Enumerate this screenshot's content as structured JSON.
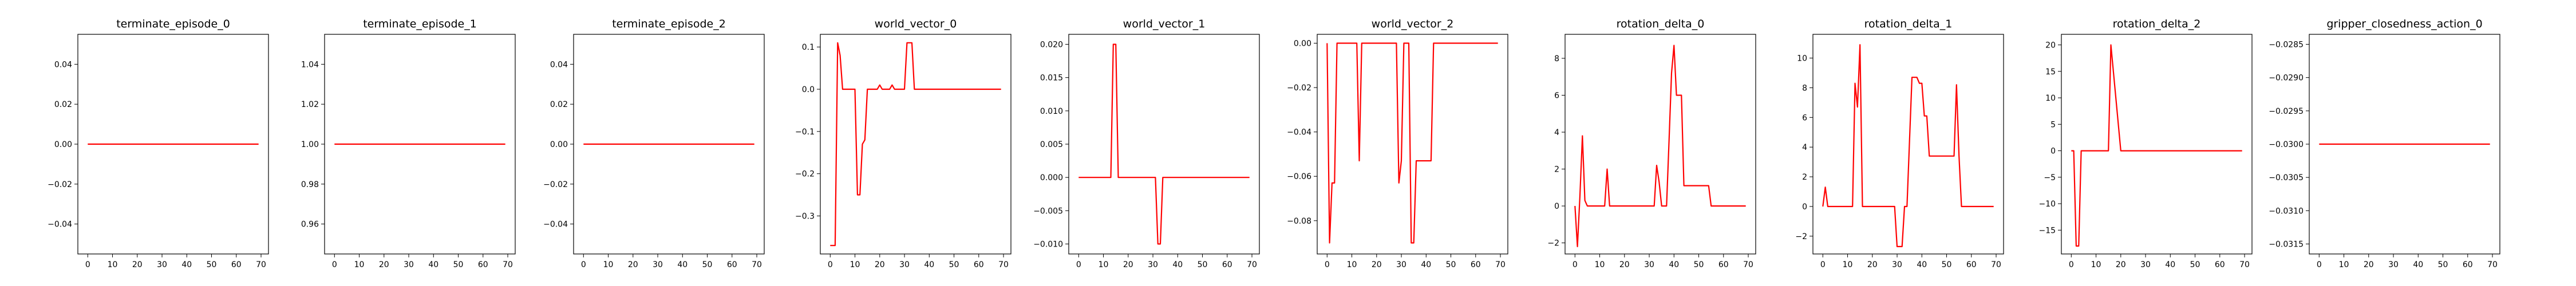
{
  "chart_data": [
    {
      "type": "line",
      "title": "terminate_episode_0",
      "color": "#ff0000",
      "xlim": [
        -4,
        73
      ],
      "ylim": [
        -0.055,
        0.055
      ],
      "xticks": [
        "0",
        "10",
        "20",
        "30",
        "40",
        "50",
        "60",
        "70"
      ],
      "yticks": [
        "−0.04",
        "−0.02",
        "0.00",
        "0.02",
        "0.04"
      ],
      "x": [
        0,
        69
      ],
      "y": [
        0.0,
        0.0
      ]
    },
    {
      "type": "line",
      "title": "terminate_episode_1",
      "color": "#ff0000",
      "xlim": [
        -4,
        73
      ],
      "ylim": [
        0.945,
        1.055
      ],
      "xticks": [
        "0",
        "10",
        "20",
        "30",
        "40",
        "50",
        "60",
        "70"
      ],
      "yticks": [
        "0.96",
        "0.98",
        "1.00",
        "1.02",
        "1.04"
      ],
      "x": [
        0,
        69
      ],
      "y": [
        1.0,
        1.0
      ]
    },
    {
      "type": "line",
      "title": "terminate_episode_2",
      "color": "#ff0000",
      "xlim": [
        -4,
        73
      ],
      "ylim": [
        -0.055,
        0.055
      ],
      "xticks": [
        "0",
        "10",
        "20",
        "30",
        "40",
        "50",
        "60",
        "70"
      ],
      "yticks": [
        "−0.04",
        "−0.02",
        "0.00",
        "0.02",
        "0.04"
      ],
      "x": [
        0,
        69
      ],
      "y": [
        0.0,
        0.0
      ]
    },
    {
      "type": "line",
      "title": "world_vector_0",
      "color": "#ff0000",
      "xlim": [
        -4,
        73
      ],
      "ylim": [
        -0.39,
        0.13
      ],
      "xticks": [
        "0",
        "10",
        "20",
        "30",
        "40",
        "50",
        "60",
        "70"
      ],
      "yticks": [
        "−0.3",
        "−0.2",
        "−0.1",
        "0.0",
        "0.1"
      ],
      "x": [
        0,
        1,
        2,
        3,
        4,
        5,
        6,
        7,
        8,
        9,
        10,
        11,
        12,
        13,
        14,
        15,
        16,
        17,
        18,
        19,
        20,
        21,
        22,
        23,
        24,
        25,
        26,
        27,
        28,
        29,
        30,
        31,
        32,
        33,
        34,
        35,
        36,
        40,
        50,
        60,
        69
      ],
      "y": [
        -0.37,
        -0.37,
        -0.37,
        0.11,
        0.08,
        0.0,
        0.0,
        0.0,
        0.0,
        0.0,
        0.0,
        -0.25,
        -0.25,
        -0.13,
        -0.12,
        0.0,
        0.0,
        0.0,
        0.0,
        0.0,
        0.01,
        0.0,
        0.0,
        0.0,
        0.0,
        0.01,
        0.0,
        0.0,
        0.0,
        0.0,
        0.0,
        0.11,
        0.11,
        0.11,
        0.0,
        0.0,
        0.0,
        0.0,
        0.0,
        0.0,
        0.0
      ]
    },
    {
      "type": "line",
      "title": "world_vector_1",
      "color": "#ff0000",
      "xlim": [
        -4,
        73
      ],
      "ylim": [
        -0.0115,
        0.0215
      ],
      "xticks": [
        "0",
        "10",
        "20",
        "30",
        "40",
        "50",
        "60",
        "70"
      ],
      "yticks": [
        "−0.010",
        "−0.005",
        "0.000",
        "0.005",
        "0.010",
        "0.015",
        "0.020"
      ],
      "x": [
        0,
        10,
        13,
        14,
        15,
        16,
        30,
        31,
        32,
        33,
        34,
        35,
        50,
        69
      ],
      "y": [
        0.0,
        0.0,
        0.0,
        0.02,
        0.02,
        0.0,
        0.0,
        0.0,
        -0.01,
        -0.01,
        0.0,
        0.0,
        0.0,
        0.0
      ]
    },
    {
      "type": "line",
      "title": "world_vector_2",
      "color": "#ff0000",
      "xlim": [
        -4,
        73
      ],
      "ylim": [
        -0.095,
        0.004
      ],
      "xticks": [
        "0",
        "10",
        "20",
        "30",
        "40",
        "50",
        "60",
        "70"
      ],
      "yticks": [
        "−0.08",
        "−0.06",
        "−0.04",
        "−0.02",
        "0.00"
      ],
      "x": [
        0,
        1,
        2,
        3,
        4,
        5,
        6,
        7,
        8,
        9,
        10,
        11,
        12,
        13,
        14,
        15,
        16,
        17,
        18,
        19,
        20,
        21,
        22,
        23,
        24,
        25,
        26,
        27,
        28,
        29,
        30,
        31,
        32,
        33,
        34,
        35,
        36,
        37,
        38,
        39,
        40,
        41,
        42,
        43,
        44,
        45,
        46,
        47,
        48,
        49,
        50,
        60,
        69
      ],
      "y": [
        0.0,
        -0.09,
        -0.063,
        -0.063,
        0.0,
        0.0,
        0.0,
        0.0,
        0.0,
        0.0,
        0.0,
        0.0,
        0.0,
        -0.053,
        0.0,
        0.0,
        0.0,
        0.0,
        0.0,
        0.0,
        0.0,
        0.0,
        0.0,
        0.0,
        0.0,
        0.0,
        0.0,
        0.0,
        0.0,
        -0.063,
        -0.053,
        0.0,
        0.0,
        0.0,
        -0.09,
        -0.09,
        -0.053,
        -0.053,
        -0.053,
        -0.053,
        -0.053,
        -0.053,
        -0.053,
        0.0,
        0.0,
        0.0,
        0.0,
        0.0,
        0.0,
        0.0,
        0.0,
        0.0,
        0.0
      ]
    },
    {
      "type": "line",
      "title": "rotation_delta_0",
      "color": "#ff0000",
      "xlim": [
        -4,
        73
      ],
      "ylim": [
        -2.6,
        9.3
      ],
      "xticks": [
        "0",
        "10",
        "20",
        "30",
        "40",
        "50",
        "60",
        "70"
      ],
      "yticks": [
        "−2",
        "0",
        "2",
        "4",
        "6",
        "8"
      ],
      "x": [
        0,
        1,
        2,
        3,
        4,
        5,
        6,
        7,
        8,
        9,
        10,
        11,
        12,
        13,
        14,
        15,
        16,
        17,
        18,
        19,
        20,
        21,
        22,
        23,
        24,
        25,
        26,
        27,
        28,
        29,
        30,
        31,
        32,
        33,
        34,
        35,
        36,
        37,
        38,
        39,
        40,
        41,
        42,
        43,
        44,
        45,
        46,
        47,
        48,
        49,
        50,
        51,
        52,
        53,
        54,
        55,
        56,
        60,
        65,
        69
      ],
      "y": [
        0.0,
        -2.2,
        0.5,
        3.8,
        0.3,
        0.0,
        0.0,
        0.0,
        0.0,
        0.0,
        0.0,
        0.0,
        0.0,
        2.0,
        0.0,
        0.0,
        0.0,
        0.0,
        0.0,
        0.0,
        0.0,
        0.0,
        0.0,
        0.0,
        0.0,
        0.0,
        0.0,
        0.0,
        0.0,
        0.0,
        0.0,
        0.0,
        0.0,
        2.2,
        1.3,
        0.0,
        0.0,
        0.0,
        3.5,
        7.2,
        8.7,
        6.0,
        6.0,
        6.0,
        1.1,
        1.1,
        1.1,
        1.1,
        1.1,
        1.1,
        1.1,
        1.1,
        1.1,
        1.1,
        1.1,
        0.0,
        0.0,
        0.0,
        0.0,
        0.0
      ]
    },
    {
      "type": "line",
      "title": "rotation_delta_1",
      "color": "#ff0000",
      "xlim": [
        -4,
        73
      ],
      "ylim": [
        -3.2,
        11.6
      ],
      "xticks": [
        "0",
        "10",
        "20",
        "30",
        "40",
        "50",
        "60",
        "70"
      ],
      "yticks": [
        "−2",
        "0",
        "2",
        "4",
        "6",
        "8",
        "10"
      ],
      "x": [
        0,
        1,
        2,
        3,
        4,
        5,
        6,
        7,
        8,
        9,
        10,
        11,
        12,
        13,
        14,
        15,
        16,
        17,
        18,
        19,
        20,
        21,
        22,
        23,
        24,
        25,
        26,
        27,
        28,
        29,
        30,
        31,
        32,
        33,
        34,
        35,
        36,
        37,
        38,
        39,
        40,
        41,
        42,
        43,
        44,
        45,
        46,
        47,
        48,
        49,
        50,
        51,
        52,
        53,
        54,
        55,
        56,
        60,
        65,
        69
      ],
      "y": [
        0.0,
        1.3,
        0.0,
        0.0,
        0.0,
        0.0,
        0.0,
        0.0,
        0.0,
        0.0,
        0.0,
        0.0,
        0.0,
        8.3,
        6.7,
        10.9,
        0.0,
        0.0,
        0.0,
        0.0,
        0.0,
        0.0,
        0.0,
        0.0,
        0.0,
        0.0,
        0.0,
        0.0,
        0.0,
        0.0,
        -2.7,
        -2.7,
        -2.7,
        0.0,
        0.0,
        4.4,
        8.7,
        8.7,
        8.7,
        8.3,
        8.3,
        6.1,
        6.1,
        3.4,
        3.4,
        3.4,
        3.4,
        3.4,
        3.4,
        3.4,
        3.4,
        3.4,
        3.4,
        3.4,
        8.2,
        3.4,
        0.0,
        0.0,
        0.0,
        0.0
      ]
    },
    {
      "type": "line",
      "title": "rotation_delta_2",
      "color": "#ff0000",
      "xlim": [
        -4,
        73
      ],
      "ylim": [
        -19.5,
        22.0
      ],
      "xticks": [
        "0",
        "10",
        "20",
        "30",
        "40",
        "50",
        "60",
        "70"
      ],
      "yticks": [
        "−15",
        "−10",
        "−5",
        "0",
        "5",
        "10",
        "15",
        "20"
      ],
      "x": [
        0,
        1,
        2,
        3,
        4,
        5,
        10,
        12,
        13,
        14,
        15,
        16,
        20,
        30,
        40,
        50,
        60,
        69
      ],
      "y": [
        0.0,
        0.0,
        -18.0,
        -18.0,
        0.0,
        0.0,
        0.0,
        0.0,
        0.0,
        0.0,
        0.0,
        20.0,
        0.0,
        0.0,
        0.0,
        0.0,
        0.0,
        0.0
      ]
    },
    {
      "type": "line",
      "title": "gripper_closedness_action_0",
      "color": "#ff0000",
      "xlim": [
        -4,
        73
      ],
      "ylim": [
        -0.03165,
        -0.02835
      ],
      "xticks": [
        "0",
        "10",
        "20",
        "30",
        "40",
        "50",
        "60",
        "70"
      ],
      "yticks": [
        "−0.0315",
        "−0.0310",
        "−0.0305",
        "−0.0300",
        "−0.0295",
        "−0.0290",
        "−0.0285"
      ],
      "x": [
        0,
        69
      ],
      "y": [
        -0.03,
        -0.03
      ]
    }
  ]
}
